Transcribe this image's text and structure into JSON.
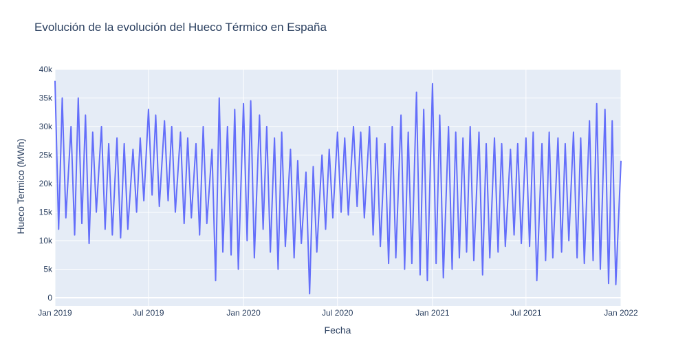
{
  "chart_data": {
    "type": "line",
    "title": "Evolución de la evolución del Hueco Térmico en España",
    "x_label": "Fecha",
    "y_label": "Hueco Termico (MWh)",
    "xlim": [
      "2019-01-01",
      "2022-01-01"
    ],
    "xticks": [
      {
        "value": "2019-01-01",
        "label": "Jan 2019"
      },
      {
        "value": "2019-07-01",
        "label": "Jul 2019"
      },
      {
        "value": "2020-01-01",
        "label": "Jan 2020"
      },
      {
        "value": "2020-07-01",
        "label": "Jul 2020"
      },
      {
        "value": "2021-01-01",
        "label": "Jan 2021"
      },
      {
        "value": "2021-07-01",
        "label": "Jul 2021"
      },
      {
        "value": "2022-01-01",
        "label": "Jan 2022"
      }
    ],
    "ylim": [
      -1450,
      40000
    ],
    "yticks": [
      0,
      {
        "value": 5000,
        "label": "5k"
      },
      {
        "value": 10000,
        "label": "10k"
      },
      {
        "value": 15000,
        "label": "15k"
      },
      {
        "value": 20000,
        "label": "20k"
      },
      {
        "value": 25000,
        "label": "25k"
      },
      {
        "value": 30000,
        "label": "30k"
      },
      {
        "value": 35000,
        "label": "35k"
      },
      {
        "value": 40000,
        "label": "40k"
      }
    ],
    "grid": true,
    "x": [
      "2019-01-01",
      "2019-01-08",
      "2019-01-15",
      "2019-01-22",
      "2019-02-01",
      "2019-02-08",
      "2019-02-15",
      "2019-02-22",
      "2019-03-01",
      "2019-03-08",
      "2019-03-15",
      "2019-03-22",
      "2019-04-01",
      "2019-04-08",
      "2019-04-15",
      "2019-04-22",
      "2019-05-01",
      "2019-05-08",
      "2019-05-15",
      "2019-05-22",
      "2019-06-01",
      "2019-06-08",
      "2019-06-15",
      "2019-06-22",
      "2019-07-01",
      "2019-07-08",
      "2019-07-15",
      "2019-07-22",
      "2019-08-01",
      "2019-08-08",
      "2019-08-15",
      "2019-08-22",
      "2019-09-01",
      "2019-09-08",
      "2019-09-15",
      "2019-09-22",
      "2019-10-01",
      "2019-10-08",
      "2019-10-15",
      "2019-10-22",
      "2019-11-01",
      "2019-11-08",
      "2019-11-15",
      "2019-11-22",
      "2019-12-01",
      "2019-12-08",
      "2019-12-15",
      "2019-12-22",
      "2020-01-01",
      "2020-01-08",
      "2020-01-15",
      "2020-01-22",
      "2020-02-01",
      "2020-02-08",
      "2020-02-15",
      "2020-02-22",
      "2020-03-01",
      "2020-03-08",
      "2020-03-15",
      "2020-03-22",
      "2020-04-01",
      "2020-04-08",
      "2020-04-15",
      "2020-04-22",
      "2020-05-01",
      "2020-05-08",
      "2020-05-15",
      "2020-05-22",
      "2020-06-01",
      "2020-06-08",
      "2020-06-15",
      "2020-06-22",
      "2020-07-01",
      "2020-07-08",
      "2020-07-15",
      "2020-07-22",
      "2020-08-01",
      "2020-08-08",
      "2020-08-15",
      "2020-08-22",
      "2020-09-01",
      "2020-09-08",
      "2020-09-15",
      "2020-09-22",
      "2020-10-01",
      "2020-10-08",
      "2020-10-15",
      "2020-10-22",
      "2020-11-01",
      "2020-11-08",
      "2020-11-15",
      "2020-11-22",
      "2020-12-01",
      "2020-12-08",
      "2020-12-15",
      "2020-12-22",
      "2021-01-01",
      "2021-01-08",
      "2021-01-15",
      "2021-01-22",
      "2021-02-01",
      "2021-02-08",
      "2021-02-15",
      "2021-02-22",
      "2021-03-01",
      "2021-03-08",
      "2021-03-15",
      "2021-03-22",
      "2021-04-01",
      "2021-04-08",
      "2021-04-15",
      "2021-04-22",
      "2021-05-01",
      "2021-05-08",
      "2021-05-15",
      "2021-05-22",
      "2021-06-01",
      "2021-06-08",
      "2021-06-15",
      "2021-06-22",
      "2021-07-01",
      "2021-07-08",
      "2021-07-15",
      "2021-07-22",
      "2021-08-01",
      "2021-08-08",
      "2021-08-15",
      "2021-08-22",
      "2021-09-01",
      "2021-09-08",
      "2021-09-15",
      "2021-09-22",
      "2021-10-01",
      "2021-10-08",
      "2021-10-15",
      "2021-10-22",
      "2021-11-01",
      "2021-11-08",
      "2021-11-15",
      "2021-11-22",
      "2021-12-01",
      "2021-12-08",
      "2021-12-15",
      "2021-12-22",
      "2022-01-01"
    ],
    "series": [
      {
        "color": "#636efa",
        "values": [
          38000,
          12000,
          35000,
          14000,
          30000,
          11000,
          35000,
          13000,
          32000,
          9500,
          29000,
          15000,
          30000,
          12000,
          27000,
          11000,
          28000,
          10500,
          27000,
          12000,
          26000,
          15000,
          28000,
          17000,
          33000,
          18000,
          32000,
          16000,
          31000,
          17000,
          30000,
          15000,
          29000,
          13000,
          28000,
          14000,
          27000,
          11000,
          30000,
          13000,
          26000,
          3000,
          35000,
          8000,
          30000,
          7500,
          33000,
          5000,
          34000,
          10000,
          34500,
          7000,
          32000,
          12000,
          30000,
          8000,
          28000,
          5000,
          29000,
          9000,
          26000,
          7000,
          24000,
          9500,
          22000,
          700,
          23000,
          8000,
          25000,
          12000,
          26000,
          14000,
          29000,
          15000,
          28000,
          14500,
          30000,
          16000,
          29000,
          14000,
          30000,
          11000,
          28000,
          9000,
          27000,
          6000,
          30000,
          7000,
          32000,
          5000,
          29000,
          6000,
          36000,
          4000,
          33000,
          3000,
          37500,
          6000,
          32000,
          3500,
          30000,
          5000,
          29000,
          7000,
          28000,
          8000,
          30000,
          6500,
          29000,
          4000,
          27000,
          7000,
          28000,
          8000,
          27000,
          9000,
          26000,
          11000,
          27000,
          9500,
          28000,
          9000,
          29000,
          3000,
          27000,
          6500,
          29000,
          7000,
          28000,
          8000,
          27000,
          10000,
          29000,
          7000,
          28000,
          6000,
          31000,
          6500,
          34000,
          5000,
          33000,
          2500,
          31000,
          2300,
          24000
        ]
      }
    ]
  }
}
